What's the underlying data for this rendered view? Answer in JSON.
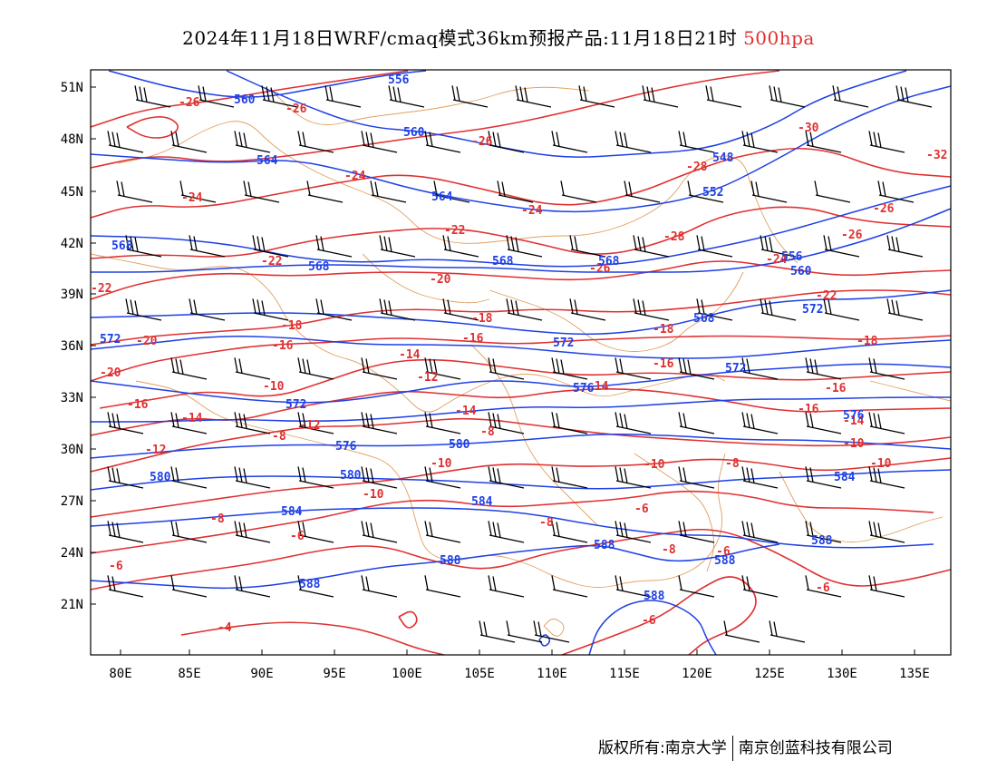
{
  "title": {
    "main": "2024年11月18日WRF/cmaq模式36km预报产品:11月18日21时",
    "level": "500hpa"
  },
  "axes": {
    "lon_ticks": [
      "80E",
      "85E",
      "90E",
      "95E",
      "100E",
      "105E",
      "110E",
      "115E",
      "120E",
      "125E",
      "130E",
      "135E"
    ],
    "lat_ticks": [
      "51N",
      "48N",
      "45N",
      "42N",
      "39N",
      "36N",
      "33N",
      "30N",
      "27N",
      "24N",
      "21N"
    ]
  },
  "colors": {
    "temperature": "#e03030",
    "height": "#1e40e6",
    "wind": "#000000",
    "borders": "#e0a060",
    "frame": "#000000"
  },
  "contour_labels": {
    "temperature": [
      "-26",
      "-26",
      "-26",
      "-28",
      "-30",
      "-32",
      "-24",
      "-24",
      "-24",
      "-28",
      "-26",
      "-26",
      "-22",
      "-22",
      "-26",
      "-24",
      "-20",
      "-22",
      "-22",
      "-18",
      "-20",
      "-18",
      "-20",
      "-16",
      "-18",
      "-16",
      "-14",
      "-16",
      "-16",
      "-18",
      "-16",
      "-14",
      "-10",
      "-12",
      "-14",
      "-16",
      "-14",
      "-12",
      "-14",
      "-12",
      "-10",
      "-8",
      "-10",
      "-10",
      "-10",
      "-10",
      "-8",
      "-6",
      "-8",
      "-6",
      "-6",
      "-8",
      "-6",
      "-4",
      "-8",
      "-8",
      "-6",
      "-6"
    ],
    "height": [
      "560",
      "556",
      "560",
      "564",
      "548",
      "552",
      "564",
      "568",
      "568",
      "568",
      "568",
      "556",
      "560",
      "572",
      "568",
      "572",
      "572",
      "572",
      "572",
      "576",
      "576",
      "576",
      "580",
      "580",
      "580",
      "584",
      "584",
      "584",
      "588",
      "588",
      "588",
      "588",
      "588",
      "588"
    ]
  },
  "credit": {
    "left": "版权所有:南京大学",
    "right": "南京创蓝科技有限公司"
  }
}
